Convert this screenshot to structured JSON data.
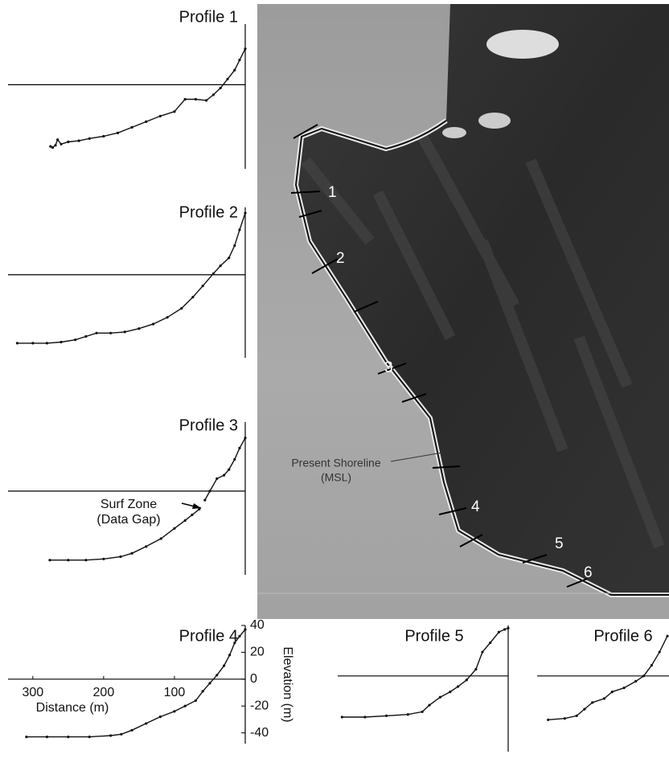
{
  "chart_data": [
    {
      "type": "line",
      "title": "Profile 1",
      "color": "#111111",
      "x": [
        275,
        272,
        268,
        265,
        260,
        250,
        235,
        220,
        200,
        180,
        160,
        140,
        120,
        100,
        85,
        70,
        55,
        45,
        35,
        25,
        15,
        8,
        0
      ],
      "values": [
        -55,
        -56,
        -54,
        -49,
        -53,
        -51,
        -50,
        -48,
        -46,
        -43,
        -38,
        -33,
        -28,
        -24,
        -13,
        -13,
        -14,
        -9,
        -3,
        5,
        13,
        22,
        32
      ],
      "xlim": [
        335,
        0
      ],
      "ylim": [
        -75,
        54
      ]
    },
    {
      "type": "line",
      "title": "Profile 2",
      "color": "#111111",
      "x": [
        322,
        300,
        280,
        260,
        240,
        225,
        210,
        190,
        170,
        150,
        130,
        110,
        90,
        74,
        60,
        45,
        35,
        23,
        15,
        8,
        0
      ],
      "values": [
        -61,
        -61,
        -61,
        -60,
        -58,
        -55,
        -52,
        -52,
        -51,
        -48,
        -44,
        -38,
        -30,
        -20,
        -10,
        1,
        8,
        15,
        26,
        40,
        55
      ],
      "xlim": [
        335,
        0
      ],
      "ylim": [
        -74,
        60
      ]
    },
    {
      "type": "line",
      "title": "Profile 3",
      "color": "#111111",
      "annotation": [
        "Surf Zone",
        "(Data Gap)"
      ],
      "x": [
        276,
        250,
        225,
        200,
        176,
        160,
        140,
        119,
        100,
        85,
        75,
        65,
        60,
        57,
        50,
        40,
        30,
        23,
        15,
        8,
        0
      ],
      "values": [
        -61,
        -61,
        -61,
        -60,
        -58,
        -55,
        -49,
        -42,
        -33,
        -26,
        -21,
        -16,
        null,
        -8,
        0,
        11,
        14,
        19,
        28,
        38,
        47
      ],
      "xlim": [
        335,
        0
      ],
      "ylim": [
        -74,
        61
      ]
    },
    {
      "type": "line",
      "title": "Profile 4",
      "color": "#111111",
      "x_label": "Distance (m)",
      "y_label": "Elevation (m)",
      "x": [
        309,
        280,
        250,
        220,
        190,
        175,
        160,
        140,
        120,
        100,
        85,
        70,
        60,
        50,
        40,
        30,
        22,
        15,
        8,
        0
      ],
      "values": [
        -43,
        -43,
        -43,
        -43,
        -42,
        -41,
        -38,
        -33,
        -28,
        -24,
        -20,
        -16,
        -9,
        -3,
        3,
        10,
        18,
        27,
        32,
        37
      ],
      "xlim": [
        335,
        0
      ],
      "ylim": [
        -48,
        40
      ],
      "xticks": [
        300,
        200,
        100
      ],
      "yticks": [
        40,
        20,
        0,
        -20,
        -40
      ]
    },
    {
      "type": "line",
      "title": "Profile 5",
      "color": "#111111",
      "x": [
        232,
        200,
        170,
        140,
        120,
        110,
        95,
        81,
        70,
        58,
        45,
        36,
        25,
        13,
        5,
        0
      ],
      "values": [
        -31,
        -31,
        -30,
        -29,
        -27,
        -22,
        -16,
        -12,
        -8,
        -3,
        5,
        18,
        25,
        33,
        35,
        36
      ],
      "xlim": [
        238,
        0
      ],
      "ylim": [
        -57,
        38
      ]
    },
    {
      "type": "line",
      "title": "Profile 6",
      "color": "#111111",
      "x": [
        171,
        150,
        135,
        125,
        115,
        100,
        90,
        75,
        60,
        50,
        40,
        30,
        20
      ],
      "values": [
        -33,
        -32,
        -30,
        -25,
        -20,
        -17,
        -12,
        -9,
        -4,
        0,
        8,
        18,
        30
      ],
      "xlim": [
        185,
        18
      ],
      "ylim": [
        -57,
        38
      ]
    }
  ],
  "map": {
    "transect_labels": [
      "1",
      "2",
      "3",
      "4",
      "5",
      "6"
    ],
    "shoreline_label": [
      "Present Shoreline",
      "(MSL)"
    ]
  }
}
